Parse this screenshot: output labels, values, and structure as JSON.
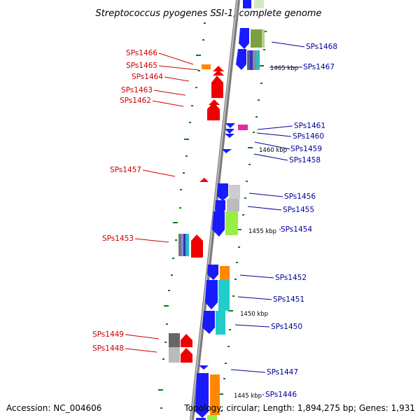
{
  "title": "Streptococcus pyogenes SSI-1, complete genome",
  "accession": "Accession: NC_004606",
  "topology": "Topology: circular; Length: 1,894,275 bp; Genes: 1,931",
  "colors": {
    "left_label": "#cc0000",
    "right_label": "#000099",
    "backbone": "#999999",
    "tick": "#008000"
  },
  "left_labels": [
    "SPs1466",
    "SPs1465",
    "SPs1464",
    "SPs1463",
    "SPs1462",
    "SPs1457",
    "SPs1453",
    "SPs1449",
    "SPs1448"
  ],
  "right_labels": [
    "SPs1468",
    "SPs1467",
    "SPs1461",
    "SPs1460",
    "SPs1459",
    "SPs1458",
    "SPs1456",
    "SPs1455",
    "SPs1454",
    "SPs1452",
    "SPs1451",
    "SPs1450",
    "SPs1447",
    "SPs1446"
  ],
  "kbp_labels": [
    "1465 kbp",
    "1460 kbp",
    "1455 kbp",
    "1450 kbp",
    "1445 kbp"
  ]
}
